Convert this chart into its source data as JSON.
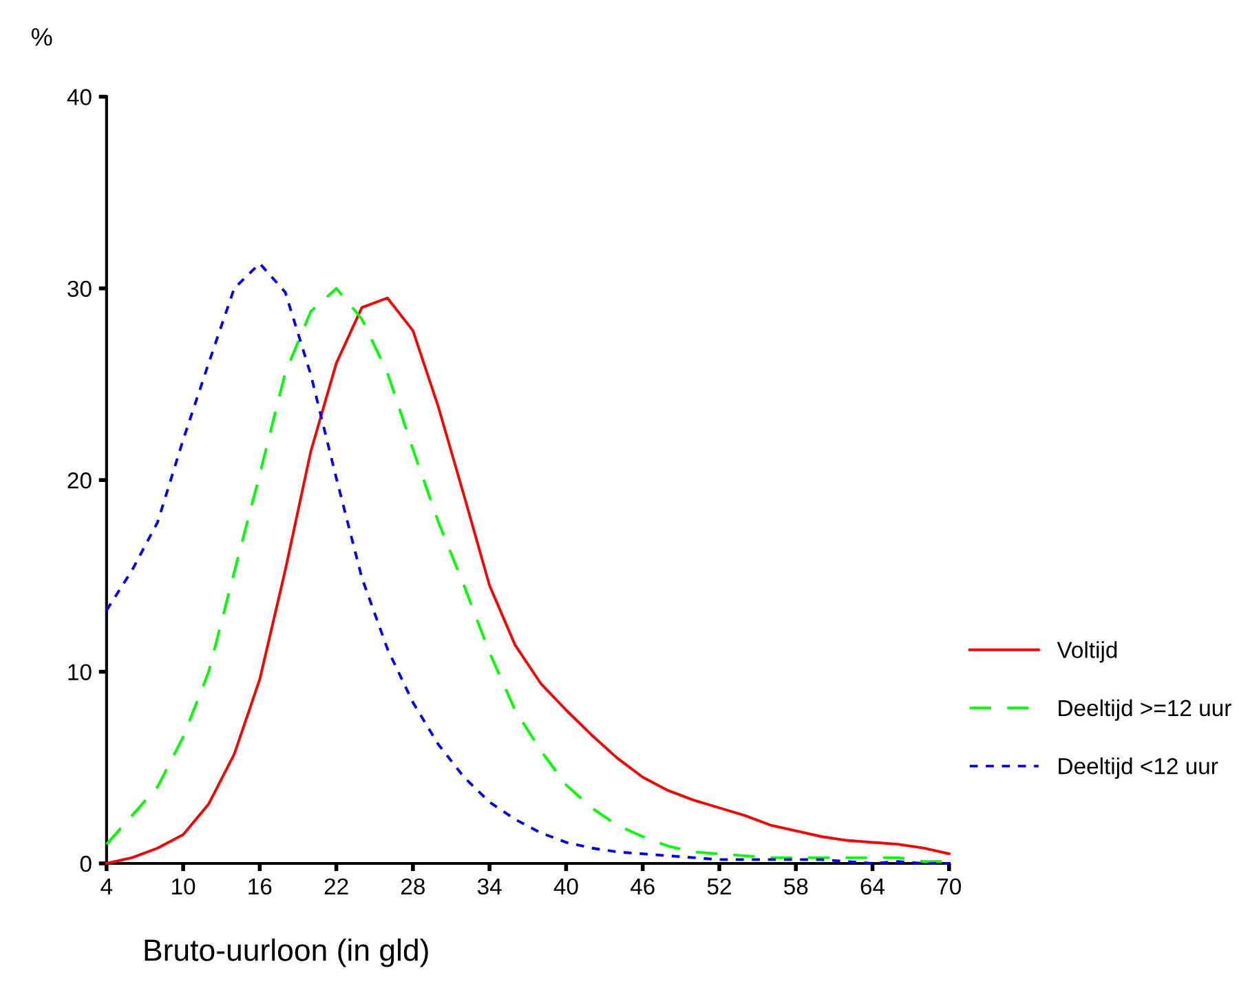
{
  "chart_data": {
    "type": "line",
    "ylabel": "%",
    "xlabel": "Bruto-uurloon (in gld)",
    "x": [
      4,
      6,
      8,
      10,
      12,
      14,
      16,
      18,
      20,
      22,
      24,
      26,
      28,
      30,
      32,
      34,
      36,
      38,
      40,
      42,
      44,
      46,
      48,
      50,
      52,
      54,
      56,
      58,
      60,
      62,
      64,
      66,
      68,
      70
    ],
    "series": [
      {
        "name": "Voltijd",
        "color": "#ff0000",
        "line_style": "solid",
        "values": [
          0,
          0.3,
          0.8,
          1.5,
          3.1,
          5.7,
          9.6,
          15.3,
          21.5,
          26.1,
          29.0,
          29.5,
          27.8,
          23.8,
          19.2,
          14.5,
          11.4,
          9.4,
          8.0,
          6.7,
          5.5,
          4.5,
          3.8,
          3.3,
          2.9,
          2.5,
          2.0,
          1.7,
          1.4,
          1.2,
          1.1,
          1.0,
          0.8,
          0.5
        ]
      },
      {
        "name": "Deeltijd >=12 uur",
        "color": "#00ff00",
        "line_style": "dashed",
        "values": [
          1.0,
          2.5,
          4.0,
          6.6,
          10.0,
          15.2,
          20.3,
          25.6,
          28.8,
          30.0,
          28.4,
          25.6,
          21.6,
          17.8,
          14.5,
          11.0,
          8.0,
          5.9,
          4.1,
          2.9,
          2.0,
          1.4,
          0.9,
          0.6,
          0.5,
          0.4,
          0.3,
          0.3,
          0.3,
          0.3,
          0.3,
          0.3,
          0.1,
          0.1
        ]
      },
      {
        "name": "Deeltijd <12 uur",
        "color": "#0000ff",
        "line_style": "dotted",
        "values": [
          13.2,
          15.3,
          17.8,
          22.1,
          26.1,
          30.0,
          31.3,
          29.8,
          25.5,
          20.1,
          14.9,
          11.2,
          8.4,
          6.2,
          4.5,
          3.2,
          2.3,
          1.6,
          1.1,
          0.8,
          0.6,
          0.5,
          0.4,
          0.3,
          0.2,
          0.2,
          0.2,
          0.2,
          0.2,
          0.1,
          0,
          0.1,
          0,
          0
        ]
      }
    ],
    "xlim": [
      4,
      70
    ],
    "xticks": [
      4,
      10,
      16,
      22,
      28,
      34,
      40,
      46,
      52,
      58,
      64,
      70
    ],
    "ylim": [
      0,
      40
    ],
    "yticks": [
      0,
      10,
      20,
      30,
      40
    ],
    "grid": false,
    "legend": "right",
    "marker": "none"
  }
}
